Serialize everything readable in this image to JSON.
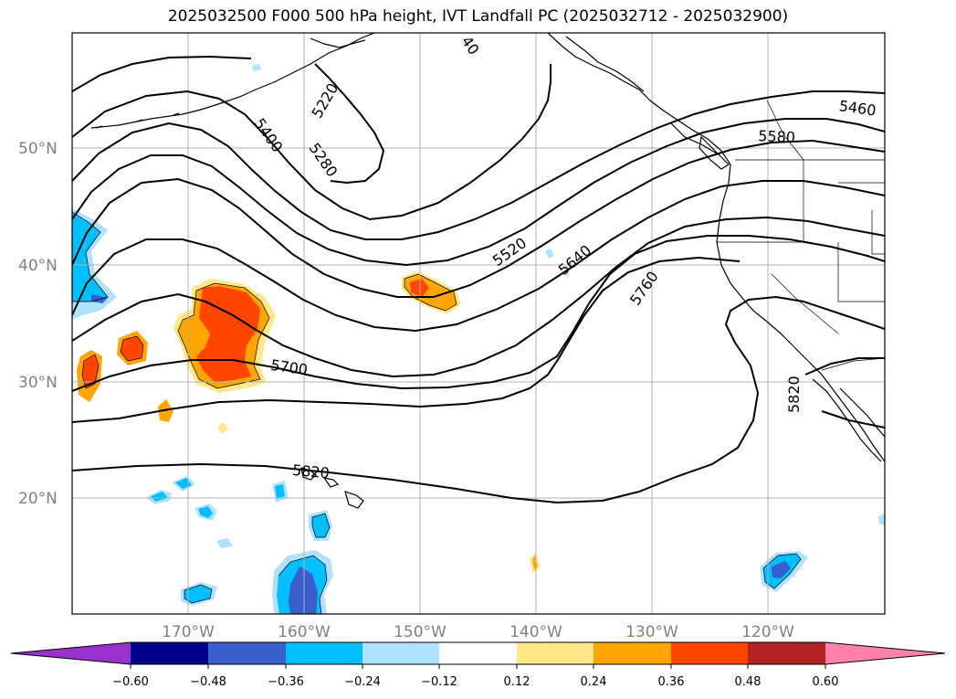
{
  "title": "2025032500 F000 500 hPa height, IVT Landfall PC (2025032712 - 2025032900)",
  "latitude_labels": [
    "50°N",
    "40°N",
    "30°N",
    "20°N"
  ],
  "longitude_labels": [
    "170°W",
    "160°W",
    "150°W",
    "140°W",
    "130°W",
    "120°W"
  ],
  "contour_labels": [
    "5220",
    "5400",
    "5280",
    "40",
    "5460",
    "5580",
    "5520",
    "5640",
    "5760",
    "5700",
    "5820",
    "5820"
  ],
  "colorbar": {
    "ticks": [
      "−0.60",
      "−0.48",
      "−0.36",
      "−0.24",
      "−0.12",
      "0.12",
      "0.24",
      "0.36",
      "0.48",
      "0.60"
    ],
    "colors": [
      "#9932cc",
      "#00008b",
      "#3a5fcd",
      "#00bfff",
      "#b0e2ff",
      "#ffffff",
      "#ffe88a",
      "#ffa500",
      "#ff4500",
      "#b22222",
      "#ff82ab"
    ]
  },
  "colors": {
    "positive_light": "#ffe88a",
    "positive_mid": "#ffa500",
    "positive_strong": "#ff4500",
    "negative_light": "#b0e2ff",
    "negative_mid": "#00bfff",
    "negative_strong": "#3a5fcd",
    "grid": "#b0b0b0",
    "contour": "#000000"
  }
}
